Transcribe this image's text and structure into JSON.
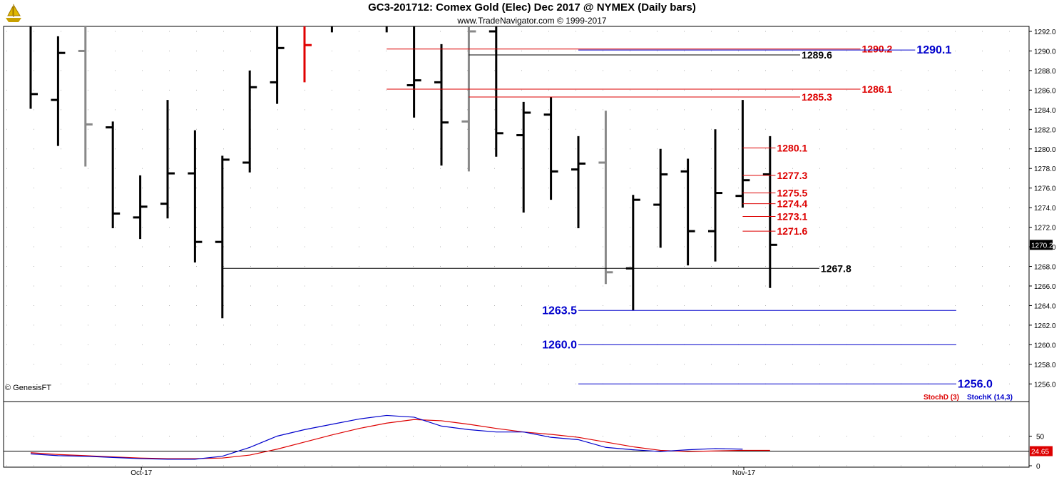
{
  "header": {
    "title": "GC3-201712:  Comex Gold (Elec) Dec 2017 @ NYMEX  (Daily bars)",
    "subtitle": "www.TradeNavigator.com © 1999-2017",
    "logo_icon": "sailing-ship-logo-icon"
  },
  "watermark": "© GenesisFT",
  "colors": {
    "bar_up": "#000000",
    "bar_gray": "#888888",
    "bar_red": "#e00000",
    "red_level": "#dd0000",
    "blue_level": "#0000cc",
    "black_level": "#000000",
    "stoch_d": "#dd0000",
    "stoch_k": "#0000cc"
  },
  "chart_data": [
    {
      "type": "ohlc",
      "ylim": [
        1255,
        1293
      ],
      "yticks": [
        "1292.0",
        "1290.0",
        "1288.0",
        "1286.0",
        "1284.0",
        "1282.0",
        "1280.0",
        "1278.0",
        "1276.0",
        "1274.0",
        "1272.0",
        "1270.0",
        "1268.0",
        "1266.0",
        "1264.0",
        "1262.0",
        "1260.0",
        "1258.0",
        "1256.0"
      ],
      "last_price": "1270.2",
      "xlabels": [
        {
          "label": "Oct-17",
          "index": 3
        },
        {
          "label": "Nov-17",
          "index": 25
        }
      ],
      "bars": [
        {
          "o": null,
          "h": 1292.6,
          "l": 1284.1,
          "c": 1285.6,
          "color": "black"
        },
        {
          "o": 1285.0,
          "h": 1291.5,
          "l": 1280.3,
          "c": 1289.8,
          "color": "black"
        },
        {
          "o": 1290.0,
          "h": 1293.0,
          "l": 1278.2,
          "c": 1282.5,
          "color": "gray"
        },
        {
          "o": 1282.2,
          "h": 1282.8,
          "l": 1271.9,
          "c": 1273.4,
          "color": "black"
        },
        {
          "o": 1273.0,
          "h": 1277.3,
          "l": 1270.8,
          "c": 1274.1,
          "color": "black"
        },
        {
          "o": 1274.4,
          "h": 1285.0,
          "l": 1272.9,
          "c": 1277.5,
          "color": "black"
        },
        {
          "o": 1277.5,
          "h": 1281.9,
          "l": 1268.4,
          "c": 1270.5,
          "color": "black"
        },
        {
          "o": 1270.5,
          "h": 1279.3,
          "l": 1262.7,
          "c": 1278.9,
          "color": "black"
        },
        {
          "o": 1278.6,
          "h": 1288.0,
          "l": 1277.6,
          "c": 1286.3,
          "color": "black"
        },
        {
          "o": 1286.8,
          "h": 1293.0,
          "l": 1284.6,
          "c": 1290.3,
          "color": "black"
        },
        {
          "o": null,
          "h": 1293.0,
          "l": 1286.8,
          "c": 1290.6,
          "color": "red"
        },
        {
          "o": null,
          "h": 1292.6,
          "l": 1291.9,
          "c": null,
          "color": "black"
        },
        {
          "o": null,
          "h": null,
          "l": null,
          "c": null,
          "color": "black"
        },
        {
          "o": null,
          "h": 1292.6,
          "l": 1291.9,
          "c": null,
          "color": "black"
        },
        {
          "o": 1286.5,
          "h": 1292.6,
          "l": 1283.2,
          "c": 1287.0,
          "color": "black"
        },
        {
          "o": 1286.8,
          "h": 1290.7,
          "l": 1278.3,
          "c": 1282.7,
          "color": "black"
        },
        {
          "o": 1282.8,
          "h": 1293.0,
          "l": 1277.7,
          "c": 1292.0,
          "color": "gray"
        },
        {
          "o": 1292.0,
          "h": 1292.6,
          "l": 1279.2,
          "c": 1281.6,
          "color": "black"
        },
        {
          "o": 1281.4,
          "h": 1284.8,
          "l": 1273.5,
          "c": 1283.7,
          "color": "black"
        },
        {
          "o": 1283.5,
          "h": 1285.3,
          "l": 1274.8,
          "c": 1277.7,
          "color": "black"
        },
        {
          "o": 1277.9,
          "h": 1281.3,
          "l": 1271.9,
          "c": 1278.5,
          "color": "black"
        },
        {
          "o": 1278.6,
          "h": 1283.9,
          "l": 1266.2,
          "c": 1267.4,
          "color": "gray"
        },
        {
          "o": 1267.8,
          "h": 1275.3,
          "l": 1263.5,
          "c": 1274.8,
          "color": "black"
        },
        {
          "o": 1274.3,
          "h": 1280.0,
          "l": 1269.9,
          "c": 1277.4,
          "color": "black"
        },
        {
          "o": 1277.7,
          "h": 1279.0,
          "l": 1268.1,
          "c": 1271.6,
          "color": "black"
        },
        {
          "o": 1271.6,
          "h": 1282.0,
          "l": 1268.5,
          "c": 1275.5,
          "color": "black"
        },
        {
          "o": 1275.2,
          "h": 1285.0,
          "l": 1274.0,
          "c": 1276.8,
          "color": "black"
        },
        {
          "o": 1277.4,
          "h": 1281.3,
          "l": 1265.8,
          "c": 1270.2,
          "color": "black"
        }
      ],
      "levels": [
        {
          "value": 1290.2,
          "label": "1290.2",
          "color": "red",
          "from": 13,
          "to": 30.3,
          "label_pos": "right"
        },
        {
          "value": 1290.1,
          "label": "1290.1",
          "color": "blue",
          "from": 20,
          "to": 32.3,
          "label_pos": "right"
        },
        {
          "value": 1289.6,
          "label": "1289.6",
          "color": "black",
          "from": 16,
          "to": 28.1,
          "label_pos": "right"
        },
        {
          "value": 1286.1,
          "label": "1286.1",
          "color": "red",
          "from": 13,
          "to": 30.3,
          "label_pos": "right"
        },
        {
          "value": 1285.3,
          "label": "1285.3",
          "color": "red",
          "from": 16,
          "to": 28.1,
          "label_pos": "right"
        },
        {
          "value": 1280.1,
          "label": "1280.1",
          "color": "red",
          "from": 26,
          "to": 27.2,
          "label_pos": "right"
        },
        {
          "value": 1277.3,
          "label": "1277.3",
          "color": "red",
          "from": 26,
          "to": 27.2,
          "label_pos": "right"
        },
        {
          "value": 1275.5,
          "label": "1275.5",
          "color": "red",
          "from": 26,
          "to": 27.2,
          "label_pos": "right"
        },
        {
          "value": 1274.4,
          "label": "1274.4",
          "color": "red",
          "from": 26,
          "to": 27.2,
          "label_pos": "right"
        },
        {
          "value": 1273.1,
          "label": "1273.1",
          "color": "red",
          "from": 26,
          "to": 27.2,
          "label_pos": "right"
        },
        {
          "value": 1271.6,
          "label": "1271.6",
          "color": "red",
          "from": 26,
          "to": 27.2,
          "label_pos": "right"
        },
        {
          "value": 1267.8,
          "label": "1267.8",
          "color": "black",
          "from": 7,
          "to": 28.8,
          "label_pos": "right"
        },
        {
          "value": 1263.5,
          "label": "1263.5",
          "color": "blue",
          "from": 20,
          "to": 33.8,
          "label_pos": "left"
        },
        {
          "value": 1260.0,
          "label": "1260.0",
          "color": "blue",
          "from": 20,
          "to": 33.8,
          "label_pos": "left"
        },
        {
          "value": 1256.0,
          "label": "1256.0",
          "color": "blue",
          "from": 20,
          "to": 33.8,
          "label_pos": "right"
        }
      ]
    },
    {
      "type": "line",
      "ylim": [
        0,
        100
      ],
      "yticks": [
        "50",
        "0"
      ],
      "reference_line": 24.65,
      "reference_label": "24.65",
      "series": [
        {
          "name": "StochD (3)",
          "color": "red",
          "values": [
            22,
            19,
            17,
            15,
            13,
            12,
            12,
            13,
            18,
            28,
            40,
            52,
            63,
            72,
            78,
            76,
            70,
            63,
            57,
            53,
            48,
            40,
            32,
            26,
            24,
            25,
            26,
            26
          ]
        },
        {
          "name": "StochK (14,3)",
          "color": "blue",
          "values": [
            20,
            17,
            16,
            14,
            12,
            11,
            11,
            16,
            31,
            50,
            61,
            70,
            79,
            85,
            82,
            67,
            61,
            57,
            57,
            48,
            44,
            31,
            27,
            24,
            27,
            29,
            28,
            null
          ]
        }
      ]
    }
  ]
}
